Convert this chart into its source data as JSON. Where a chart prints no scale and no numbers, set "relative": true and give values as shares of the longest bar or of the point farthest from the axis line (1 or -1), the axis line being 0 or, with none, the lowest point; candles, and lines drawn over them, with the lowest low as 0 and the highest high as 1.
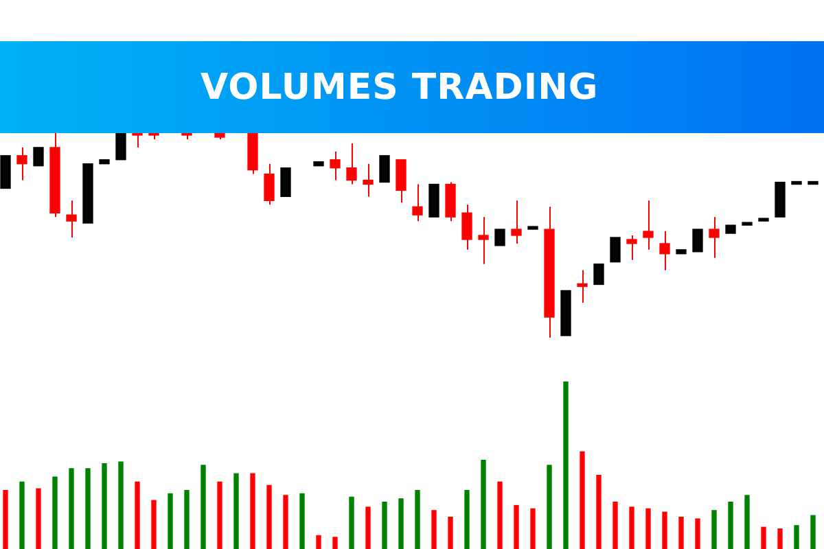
{
  "chart_data": [
    {
      "type": "candlestick",
      "title": "VOLUMES TRADING",
      "relative": true,
      "categories": [
        null,
        null,
        null,
        null,
        null,
        null,
        null,
        null,
        null,
        null,
        null,
        null,
        null,
        null,
        null,
        null,
        null,
        null,
        null,
        null,
        null,
        null,
        null,
        null,
        null,
        null,
        null,
        null,
        null,
        null,
        null,
        null,
        null,
        null,
        null,
        null,
        null,
        null,
        null,
        null,
        null,
        null,
        null,
        null,
        null,
        null,
        null,
        null,
        null,
        null
      ],
      "ohlc": [
        [
          0.73,
          0.89,
          0.73,
          0.89
        ],
        [
          0.89,
          0.93,
          0.77,
          0.85
        ],
        [
          0.84,
          0.93,
          0.84,
          0.93
        ],
        [
          0.93,
          1,
          0.59,
          0.61
        ],
        [
          0.6,
          0.67,
          0.49,
          0.57
        ],
        [
          0.56,
          0.85,
          0.56,
          0.85
        ],
        [
          0.85,
          0.87,
          0.85,
          0.87
        ],
        [
          0.87,
          1,
          0.87,
          1
        ],
        [
          1,
          1,
          0.93,
          0.99
        ],
        [
          1,
          1,
          0.97,
          0.99
        ],
        null,
        [
          1,
          1,
          0.97,
          0.99
        ],
        null,
        [
          1,
          1,
          0.97,
          0.98
        ],
        null,
        [
          1,
          1,
          0.8,
          0.82
        ],
        [
          0.8,
          0.85,
          0.65,
          0.67
        ],
        [
          0.69,
          0.83,
          0.69,
          0.83
        ],
        null,
        [
          0.84,
          0.86,
          0.84,
          0.86
        ],
        [
          0.87,
          0.91,
          0.77,
          0.83
        ],
        [
          0.83,
          0.95,
          0.75,
          0.77
        ],
        [
          0.77,
          0.85,
          0.69,
          0.75
        ],
        [
          0.76,
          0.89,
          0.76,
          0.89
        ],
        [
          0.87,
          0.87,
          0.66,
          0.72
        ],
        [
          0.64,
          0.75,
          0.57,
          0.6
        ],
        [
          0.59,
          0.75,
          0.59,
          0.75
        ],
        [
          0.75,
          0.76,
          0.57,
          0.59
        ],
        [
          0.61,
          0.65,
          0.43,
          0.48
        ],
        [
          0.5,
          0.59,
          0.36,
          0.48
        ],
        [
          0.45,
          0.53,
          0.45,
          0.53
        ],
        [
          0.53,
          0.67,
          0.46,
          0.5
        ],
        [
          0.53,
          0.54,
          0.53,
          0.54
        ],
        [
          0.53,
          0.64,
          0,
          0.1
        ],
        [
          0.01,
          0.23,
          0.01,
          0.23
        ],
        [
          0.26,
          0.33,
          0.17,
          0.25
        ],
        [
          0.26,
          0.36,
          0.26,
          0.36
        ],
        [
          0.37,
          0.49,
          0.37,
          0.49
        ],
        [
          0.48,
          0.5,
          0.38,
          0.46
        ],
        [
          0.52,
          0.67,
          0.43,
          0.49
        ],
        [
          0.46,
          0.52,
          0.33,
          0.41
        ],
        [
          0.41,
          0.43,
          0.41,
          0.43
        ],
        [
          0.42,
          0.53,
          0.42,
          0.53
        ],
        [
          0.53,
          0.59,
          0.39,
          0.49
        ],
        [
          0.51,
          0.55,
          0.51,
          0.55
        ],
        [
          0.55,
          0.56,
          0.55,
          0.56
        ],
        [
          0.57,
          0.58,
          0.57,
          0.58
        ],
        [
          0.59,
          0.76,
          0.59,
          0.76
        ],
        [
          0.75,
          0.76,
          0.75,
          0.76
        ],
        [
          0.75,
          0.76,
          0.75,
          0.76
        ]
      ],
      "colors": [
        "#000000",
        "#ff0000",
        "#000000",
        "#ff0000",
        "#ff0000",
        "#000000",
        "#000000",
        "#000000",
        "#ff0000",
        "#ff0000",
        null,
        "#ff0000",
        null,
        "#ff0000",
        null,
        "#ff0000",
        "#ff0000",
        "#000000",
        null,
        "#000000",
        "#ff0000",
        "#ff0000",
        "#ff0000",
        "#000000",
        "#ff0000",
        "#ff0000",
        "#000000",
        "#ff0000",
        "#ff0000",
        "#ff0000",
        "#000000",
        "#ff0000",
        "#000000",
        "#ff0000",
        "#000000",
        "#ff0000",
        "#000000",
        "#000000",
        "#ff0000",
        "#ff0000",
        "#ff0000",
        "#000000",
        "#000000",
        "#ff0000",
        "#000000",
        "#000000",
        "#000000",
        "#000000",
        "#000000",
        "#000000"
      ]
    },
    {
      "type": "bar",
      "relative": true,
      "categories": [
        null,
        null,
        null,
        null,
        null,
        null,
        null,
        null,
        null,
        null,
        null,
        null,
        null,
        null,
        null,
        null,
        null,
        null,
        null,
        null,
        null,
        null,
        null,
        null,
        null,
        null,
        null,
        null,
        null,
        null,
        null,
        null,
        null,
        null,
        null,
        null,
        null,
        null,
        null,
        null,
        null,
        null,
        null,
        null,
        null,
        null,
        null,
        null,
        null,
        null
      ],
      "values": [
        0.35,
        0.4,
        0.36,
        0.43,
        0.48,
        0.48,
        0.51,
        0.52,
        0.4,
        0.29,
        0.33,
        0.35,
        0.5,
        0.4,
        0.45,
        0.45,
        0.38,
        0.32,
        0.33,
        0.08,
        0.07,
        0.31,
        0.25,
        0.28,
        0.3,
        0.35,
        0.23,
        0.19,
        0.35,
        0.53,
        0.4,
        0.26,
        0.24,
        0.5,
        1,
        0.58,
        0.44,
        0.28,
        0.25,
        0.24,
        0.22,
        0.19,
        0.18,
        0.23,
        0.28,
        0.32,
        0.13,
        0.12,
        0.14,
        0.2
      ],
      "colors": [
        "#ff0000",
        "#008000",
        "#ff0000",
        "#008000",
        "#008000",
        "#008000",
        "#008000",
        "#008000",
        "#ff0000",
        "#ff0000",
        "#008000",
        "#008000",
        "#008000",
        "#ff0000",
        "#008000",
        "#ff0000",
        "#ff0000",
        "#ff0000",
        "#008000",
        "#ff0000",
        "#ff0000",
        "#008000",
        "#ff0000",
        "#008000",
        "#008000",
        "#008000",
        "#ff0000",
        "#ff0000",
        "#008000",
        "#008000",
        "#ff0000",
        "#ff0000",
        "#ff0000",
        "#008000",
        "#008000",
        "#ff0000",
        "#ff0000",
        "#ff0000",
        "#ff0000",
        "#ff0000",
        "#ff0000",
        "#ff0000",
        "#ff0000",
        "#008000",
        "#008000",
        "#008000",
        "#ff0000",
        "#ff0000",
        "#008000",
        "#008000"
      ]
    }
  ]
}
